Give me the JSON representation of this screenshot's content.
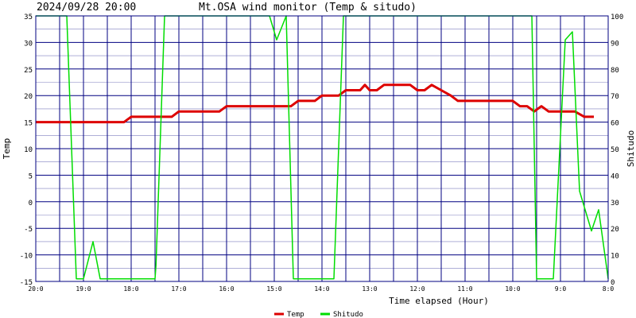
{
  "chart_data": {
    "type": "line",
    "timestamp": "2024/09/28 20:00",
    "title": "Mt.OSA wind monitor (Temp & situdo)",
    "xlabel": "Time elapsed (Hour)",
    "ylabel_left": "Temp",
    "ylabel_right": "Shitudo",
    "ylim_left": [
      -15,
      35
    ],
    "ylim_right": [
      0,
      100
    ],
    "yticks_left": [
      "35",
      "30",
      "25",
      "20",
      "15",
      "10",
      "5",
      "0",
      "-5",
      "-10",
      "-15"
    ],
    "yticks_right": [
      "100",
      "90",
      "80",
      "70",
      "60",
      "50",
      "40",
      "30",
      "20",
      "10",
      "0"
    ],
    "xticks": [
      "20:0",
      "19:0",
      "18:0",
      "17:0",
      "16:0",
      "15:0",
      "14:0",
      "13:0",
      "12:0",
      "11:0",
      "10:0",
      "9:0",
      "8:0"
    ],
    "x_hours_ago_range": [
      0,
      12
    ],
    "grid": true,
    "legend_position": "bottom",
    "colors": {
      "temp": "#dd0000",
      "shitudo": "#00dd00",
      "grid": "#000080",
      "frame": "#000080"
    },
    "series": [
      {
        "name": "Temp",
        "axis": "left",
        "points": [
          [
            0,
            15
          ],
          [
            0.5,
            15
          ],
          [
            1,
            15
          ],
          [
            1.5,
            15
          ],
          [
            1.85,
            15
          ],
          [
            2,
            16
          ],
          [
            2.5,
            16
          ],
          [
            2.85,
            16
          ],
          [
            3,
            17
          ],
          [
            3.5,
            17
          ],
          [
            3.85,
            17
          ],
          [
            4,
            18
          ],
          [
            4.5,
            18
          ],
          [
            5,
            18
          ],
          [
            5.35,
            18
          ],
          [
            5.5,
            19
          ],
          [
            5.85,
            19
          ],
          [
            6,
            20
          ],
          [
            6.35,
            20
          ],
          [
            6.5,
            21
          ],
          [
            6.8,
            21
          ],
          [
            6.9,
            22
          ],
          [
            7,
            21
          ],
          [
            7.15,
            21
          ],
          [
            7.3,
            22
          ],
          [
            7.85,
            22
          ],
          [
            8,
            21
          ],
          [
            8.15,
            21
          ],
          [
            8.3,
            22
          ],
          [
            8.5,
            21
          ],
          [
            8.7,
            20
          ],
          [
            8.85,
            19
          ],
          [
            9.5,
            19
          ],
          [
            10,
            19
          ],
          [
            10.15,
            18
          ],
          [
            10.3,
            18
          ],
          [
            10.45,
            17
          ],
          [
            10.6,
            18
          ],
          [
            10.75,
            17
          ],
          [
            11,
            17
          ],
          [
            11.3,
            17
          ],
          [
            11.5,
            16
          ],
          [
            11.7,
            16
          ]
        ]
      },
      {
        "name": "Shitudo",
        "axis": "right",
        "points": [
          [
            0,
            100
          ],
          [
            0.65,
            100
          ],
          [
            0.85,
            1
          ],
          [
            1,
            1
          ],
          [
            1.2,
            15
          ],
          [
            1.35,
            1
          ],
          [
            2.5,
            1
          ],
          [
            2.52,
            6
          ],
          [
            2.7,
            100
          ],
          [
            4.9,
            100
          ],
          [
            5.05,
            91
          ],
          [
            5.25,
            100
          ],
          [
            5.4,
            1
          ],
          [
            6.25,
            1
          ],
          [
            6.45,
            100
          ],
          [
            10.4,
            100
          ],
          [
            10.5,
            1
          ],
          [
            10.85,
            1
          ],
          [
            11.1,
            91
          ],
          [
            11.25,
            94
          ],
          [
            11.4,
            34
          ],
          [
            11.65,
            19
          ],
          [
            11.8,
            27
          ],
          [
            12,
            1
          ]
        ]
      }
    ]
  }
}
